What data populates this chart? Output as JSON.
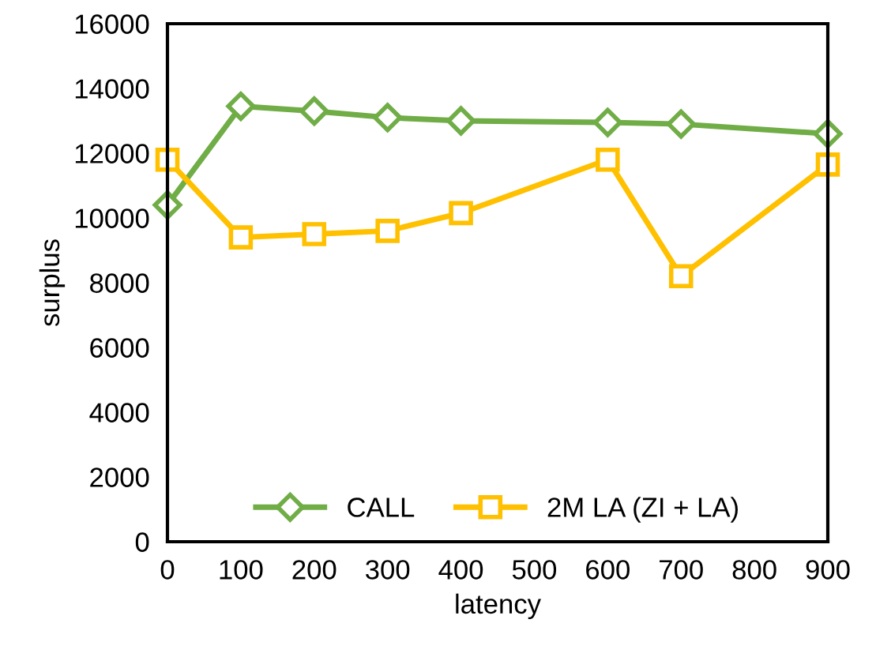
{
  "chart_data": {
    "type": "line",
    "xlabel": "latency",
    "ylabel": "surplus",
    "x": [
      0,
      100,
      200,
      300,
      400,
      600,
      700,
      900
    ],
    "series": [
      {
        "name": "CALL",
        "color": "#70ad47",
        "marker": "diamond",
        "values": [
          10400,
          13450,
          13300,
          13100,
          13000,
          12950,
          12900,
          12600
        ]
      },
      {
        "name": "2M LA (ZI + LA)",
        "color": "#ffc000",
        "marker": "square",
        "values": [
          11800,
          9400,
          9500,
          9600,
          10150,
          11800,
          8200,
          11650
        ]
      }
    ],
    "xlim": [
      0,
      900
    ],
    "xticks": [
      0,
      100,
      200,
      300,
      400,
      500,
      600,
      700,
      800,
      900
    ],
    "ylim": [
      0,
      16000
    ],
    "yticks": [
      0,
      2000,
      4000,
      6000,
      8000,
      10000,
      12000,
      14000,
      16000
    ],
    "grid": false,
    "legend": "bottom",
    "line_style": "solid"
  }
}
